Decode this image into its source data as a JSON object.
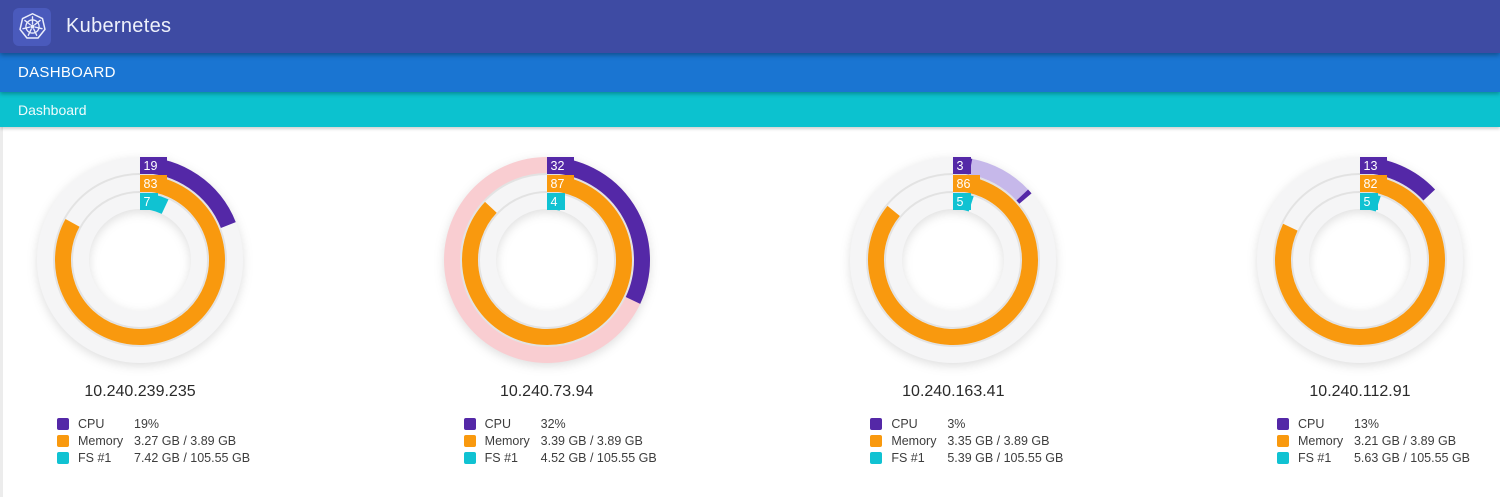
{
  "app": {
    "title": "Kubernetes",
    "nav_label": "DASHBOARD",
    "breadcrumb": "Dashboard"
  },
  "colors": {
    "header_bg": "#3e4ba3",
    "logo_bg": "#4a5abc",
    "nav_bg": "#1a75d2",
    "breadcrumb_bg": "#0cc2cf",
    "cpu": "#5428a7",
    "cpu_light": "#c6b8ea",
    "memory": "#f9990e",
    "fs": "#10c2d2",
    "track": "#f5f5f6",
    "track_alert_pink": "#f9cdd1",
    "ring_label_text": "#ffffff"
  },
  "nodes": [
    {
      "ip": "10.240.239.235",
      "rings": [
        {
          "metric": "cpu",
          "label": "19",
          "pct": 19,
          "color": "#5428a7",
          "track": "#f5f5f6",
          "extra": []
        },
        {
          "metric": "memory",
          "label": "83",
          "pct": 83,
          "color": "#f9990e",
          "track": "#f5f5f6",
          "extra": []
        },
        {
          "metric": "fs",
          "label": "7",
          "pct": 7,
          "color": "#10c2d2",
          "track": "#f5f5f6",
          "extra": []
        }
      ],
      "legend": [
        {
          "metric": "cpu",
          "label": "CPU",
          "value": "19%",
          "color": "#5428a7"
        },
        {
          "metric": "memory",
          "label": "Memory",
          "value": "3.27 GB / 3.89 GB",
          "color": "#f9990e"
        },
        {
          "metric": "fs",
          "label": "FS #1",
          "value": "7.42 GB / 105.55 GB",
          "color": "#10c2d2"
        }
      ]
    },
    {
      "ip": "10.240.73.94",
      "rings": [
        {
          "metric": "cpu",
          "label": "32",
          "pct": 32,
          "color": "#5428a7",
          "track": "#f9cdd1",
          "extra": []
        },
        {
          "metric": "memory",
          "label": "87",
          "pct": 87,
          "color": "#f9990e",
          "track": "#f5f5f6",
          "extra": []
        },
        {
          "metric": "fs",
          "label": "4",
          "pct": 4,
          "color": "#10c2d2",
          "track": "#f5f5f6",
          "extra": []
        }
      ],
      "legend": [
        {
          "metric": "cpu",
          "label": "CPU",
          "value": "32%",
          "color": "#5428a7"
        },
        {
          "metric": "memory",
          "label": "Memory",
          "value": "3.39 GB / 3.89 GB",
          "color": "#f9990e"
        },
        {
          "metric": "fs",
          "label": "FS #1",
          "value": "4.52 GB / 105.55 GB",
          "color": "#10c2d2"
        }
      ]
    },
    {
      "ip": "10.240.163.41",
      "rings": [
        {
          "metric": "cpu",
          "label": "3",
          "pct": 3,
          "color": "#5428a7",
          "track": "#f5f5f6",
          "extra": [
            {
              "from": 3,
              "to": 13,
              "color": "#c6b8ea"
            },
            {
              "from": 13,
              "to": 13.8,
              "color": "#5428a7"
            }
          ]
        },
        {
          "metric": "memory",
          "label": "86",
          "pct": 86,
          "color": "#f9990e",
          "track": "#f5f5f6",
          "extra": []
        },
        {
          "metric": "fs",
          "label": "5",
          "pct": 5,
          "color": "#10c2d2",
          "track": "#f5f5f6",
          "extra": []
        }
      ],
      "legend": [
        {
          "metric": "cpu",
          "label": "CPU",
          "value": "3%",
          "color": "#5428a7"
        },
        {
          "metric": "memory",
          "label": "Memory",
          "value": "3.35 GB / 3.89 GB",
          "color": "#f9990e"
        },
        {
          "metric": "fs",
          "label": "FS #1",
          "value": "5.39 GB / 105.55 GB",
          "color": "#10c2d2"
        }
      ]
    },
    {
      "ip": "10.240.112.91",
      "rings": [
        {
          "metric": "cpu",
          "label": "13",
          "pct": 13,
          "color": "#5428a7",
          "track": "#f5f5f6",
          "extra": []
        },
        {
          "metric": "memory",
          "label": "82",
          "pct": 82,
          "color": "#f9990e",
          "track": "#f5f5f6",
          "extra": []
        },
        {
          "metric": "fs",
          "label": "5",
          "pct": 5,
          "color": "#10c2d2",
          "track": "#f5f5f6",
          "extra": []
        }
      ],
      "legend": [
        {
          "metric": "cpu",
          "label": "CPU",
          "value": "13%",
          "color": "#5428a7"
        },
        {
          "metric": "memory",
          "label": "Memory",
          "value": "3.21 GB / 3.89 GB",
          "color": "#f9990e"
        },
        {
          "metric": "fs",
          "label": "FS #1",
          "value": "5.63 GB / 105.55 GB",
          "color": "#10c2d2"
        }
      ]
    }
  ]
}
